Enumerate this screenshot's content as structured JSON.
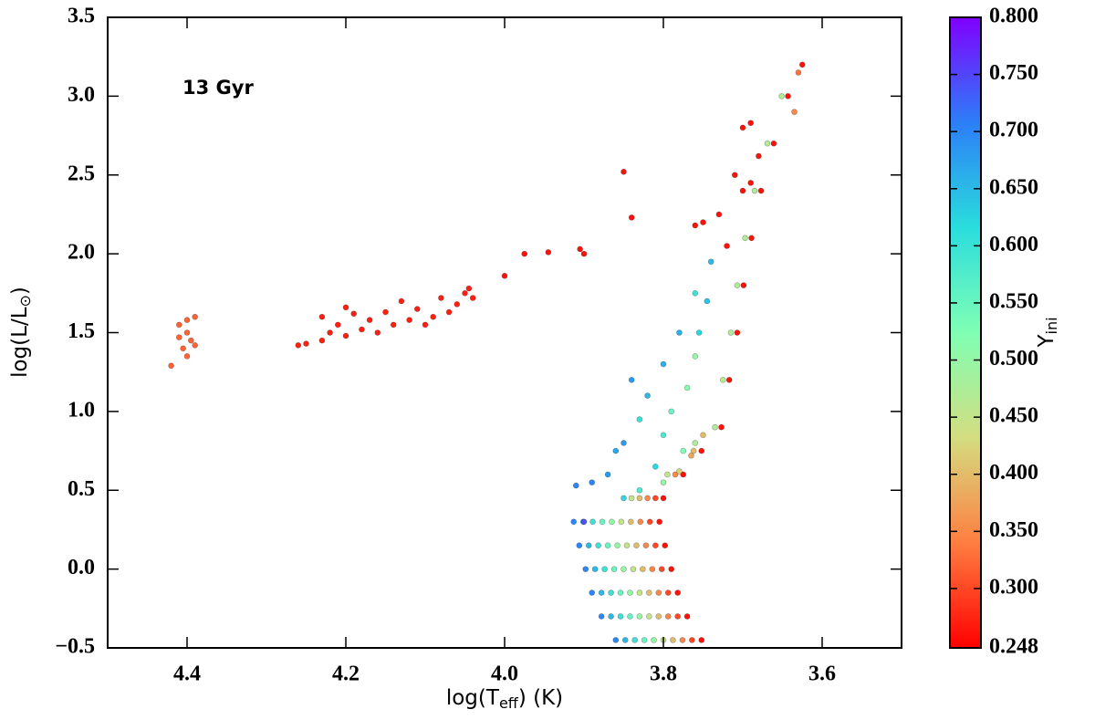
{
  "chart_data": {
    "type": "scatter",
    "annotation": "13 Gyr",
    "xlabel": {
      "pre": "log(T",
      "sub": "eff",
      "post": ") (K)"
    },
    "ylabel": {
      "pre": "log(L/L",
      "sub": "⊙",
      "post": ")"
    },
    "colorbar_label": {
      "main": "Y",
      "sub": "ini"
    },
    "xlim": [
      4.5,
      3.5
    ],
    "ylim": [
      -0.5,
      3.5
    ],
    "xticks": [
      4.4,
      4.2,
      {
        "value": 4.0,
        "label": "4.0"
      },
      3.8,
      3.6
    ],
    "yticks": [
      {
        "value": -0.5,
        "label": "−0.5"
      },
      {
        "value": 0,
        "label": "0.0"
      },
      0.5,
      {
        "value": 1,
        "label": "1.0"
      },
      1.5,
      {
        "value": 2,
        "label": "2.0"
      },
      2.5,
      {
        "value": 3,
        "label": "3.0"
      },
      3.5
    ],
    "clim": [
      0.248,
      0.8
    ],
    "cticks": [
      {
        "value": 0.248,
        "label": "0.248"
      },
      {
        "value": 0.3,
        "label": "0.300"
      },
      {
        "value": 0.35,
        "label": "0.350"
      },
      {
        "value": 0.4,
        "label": "0.400"
      },
      {
        "value": 0.45,
        "label": "0.450"
      },
      {
        "value": 0.5,
        "label": "0.500"
      },
      {
        "value": 0.55,
        "label": "0.550"
      },
      {
        "value": 0.6,
        "label": "0.600"
      },
      {
        "value": 0.65,
        "label": "0.650"
      },
      {
        "value": 0.7,
        "label": "0.700"
      },
      {
        "value": 0.75,
        "label": "0.750"
      },
      {
        "value": 0.8,
        "label": "0.800"
      }
    ],
    "colormap": [
      "#ff0000",
      "#ff7e41",
      "#d4dd80",
      "#80ffb4",
      "#2adddd",
      "#2c7ef7",
      "#8000ff"
    ],
    "series": [
      {
        "x": [
          4.4,
          4.41,
          4.39,
          4.4,
          4.395,
          4.405,
          4.4,
          4.42,
          4.39,
          4.41
        ],
        "values": [
          1.58,
          1.55,
          1.6,
          1.5,
          1.45,
          1.4,
          1.35,
          1.29,
          1.42,
          1.47
        ],
        "color_values": [
          0.32,
          0.32,
          0.32,
          0.32,
          0.32,
          0.32,
          0.32,
          0.32,
          0.32,
          0.32
        ]
      },
      {
        "x": [
          4.26,
          4.25,
          4.23,
          4.22,
          4.21,
          4.2,
          4.19,
          4.18,
          4.17,
          4.16,
          4.15,
          4.14,
          4.13,
          4.12,
          4.11,
          4.1,
          4.09,
          4.08,
          4.07,
          4.06,
          4.05,
          4.04,
          4.045,
          4.2,
          4.23
        ],
        "values": [
          1.42,
          1.43,
          1.45,
          1.5,
          1.55,
          1.48,
          1.62,
          1.52,
          1.58,
          1.5,
          1.63,
          1.55,
          1.7,
          1.58,
          1.65,
          1.55,
          1.6,
          1.72,
          1.63,
          1.68,
          1.75,
          1.72,
          1.78,
          1.66,
          1.6
        ],
        "color_values": [
          0.27,
          0.27,
          0.27,
          0.27,
          0.27,
          0.27,
          0.27,
          0.27,
          0.27,
          0.27,
          0.27,
          0.27,
          0.27,
          0.27,
          0.27,
          0.27,
          0.27,
          0.27,
          0.27,
          0.27,
          0.27,
          0.27,
          0.27,
          0.27,
          0.27
        ]
      },
      {
        "x": [
          3.85,
          3.84,
          4.0,
          3.975,
          3.945,
          3.905,
          3.9,
          3.76,
          3.75,
          3.73,
          3.72,
          3.7,
          3.69,
          3.71,
          3.68,
          3.7,
          3.69
        ],
        "values": [
          2.52,
          2.23,
          1.86,
          2.0,
          2.01,
          2.03,
          2.0,
          2.18,
          2.2,
          2.25,
          2.05,
          2.4,
          2.45,
          2.5,
          2.62,
          2.8,
          2.83
        ],
        "color_values": [
          0.26,
          0.26,
          0.26,
          0.26,
          0.26,
          0.26,
          0.26,
          0.26,
          0.26,
          0.26,
          0.26,
          0.26,
          0.26,
          0.26,
          0.26,
          0.26,
          0.26
        ]
      },
      {
        "x": [
          3.752,
          3.764,
          3.776,
          3.788,
          3.8,
          3.812,
          3.824,
          3.836,
          3.848,
          3.86
        ],
        "values": [
          -0.45,
          -0.45,
          -0.45,
          -0.45,
          -0.45,
          -0.45,
          -0.45,
          -0.45,
          -0.45,
          -0.45
        ],
        "color_values": [
          0.26,
          0.3,
          0.35,
          0.4,
          0.45,
          0.5,
          0.55,
          0.6,
          0.65,
          0.7
        ]
      },
      {
        "x": [
          3.77,
          3.782,
          3.794,
          3.806,
          3.818,
          3.83,
          3.842,
          3.854,
          3.866,
          3.878
        ],
        "values": [
          -0.3,
          -0.3,
          -0.3,
          -0.3,
          -0.3,
          -0.3,
          -0.3,
          -0.3,
          -0.3,
          -0.3
        ],
        "color_values": [
          0.26,
          0.3,
          0.35,
          0.4,
          0.45,
          0.5,
          0.55,
          0.6,
          0.65,
          0.7
        ]
      },
      {
        "x": [
          3.782,
          3.794,
          3.806,
          3.818,
          3.83,
          3.842,
          3.854,
          3.866,
          3.878,
          3.89
        ],
        "values": [
          -0.15,
          -0.15,
          -0.15,
          -0.15,
          -0.15,
          -0.15,
          -0.15,
          -0.15,
          -0.15,
          -0.15
        ],
        "color_values": [
          0.26,
          0.3,
          0.35,
          0.4,
          0.45,
          0.5,
          0.55,
          0.6,
          0.65,
          0.7
        ]
      },
      {
        "x": [
          3.79,
          3.802,
          3.814,
          3.826,
          3.838,
          3.85,
          3.862,
          3.874,
          3.886,
          3.898
        ],
        "values": [
          0,
          0,
          0,
          0,
          0,
          0,
          0,
          0,
          0,
          0
        ],
        "color_values": [
          0.26,
          0.3,
          0.35,
          0.4,
          0.45,
          0.5,
          0.55,
          0.6,
          0.65,
          0.7
        ]
      },
      {
        "x": [
          3.798,
          3.81,
          3.822,
          3.834,
          3.846,
          3.858,
          3.87,
          3.882,
          3.894,
          3.906
        ],
        "values": [
          0.15,
          0.15,
          0.15,
          0.15,
          0.15,
          0.15,
          0.15,
          0.15,
          0.15,
          0.15
        ],
        "color_values": [
          0.26,
          0.3,
          0.35,
          0.4,
          0.45,
          0.5,
          0.55,
          0.6,
          0.65,
          0.7
        ]
      },
      {
        "x": [
          3.805,
          3.817,
          3.829,
          3.841,
          3.853,
          3.865,
          3.877,
          3.889,
          3.901,
          3.913
        ],
        "values": [
          0.3,
          0.3,
          0.3,
          0.3,
          0.3,
          0.3,
          0.3,
          0.3,
          0.3,
          0.3
        ],
        "color_values": [
          0.26,
          0.3,
          0.35,
          0.4,
          0.45,
          0.5,
          0.55,
          0.6,
          0.65,
          0.7
        ]
      },
      {
        "x": [
          3.8,
          3.81,
          3.82,
          3.83,
          3.84,
          3.775,
          3.785,
          3.795,
          3.752,
          3.762
        ],
        "values": [
          0.45,
          0.45,
          0.45,
          0.45,
          0.45,
          0.6,
          0.6,
          0.6,
          0.75,
          0.75
        ],
        "color_values": [
          0.26,
          0.3,
          0.35,
          0.4,
          0.45,
          0.26,
          0.35,
          0.45,
          0.26,
          0.4
        ]
      },
      {
        "x": [
          3.91,
          3.89,
          3.85,
          3.84,
          3.82,
          3.8,
          3.78,
          3.76,
          3.755,
          3.74,
          3.745,
          3.87,
          3.86,
          3.83,
          3.8,
          3.81,
          3.79,
          3.77,
          3.76,
          3.9,
          3.85,
          3.83,
          3.8,
          3.78,
          3.765,
          3.75,
          3.76,
          3.775
        ],
        "values": [
          0.53,
          0.55,
          0.8,
          1.2,
          1.1,
          1.3,
          1.5,
          1.75,
          1.5,
          1.95,
          1.7,
          0.6,
          0.75,
          0.95,
          0.85,
          0.65,
          1.0,
          1.15,
          1.35,
          0.3,
          0.45,
          0.5,
          0.55,
          0.62,
          0.72,
          0.85,
          0.8,
          0.75
        ],
        "color_values": [
          0.7,
          0.7,
          0.68,
          0.68,
          0.65,
          0.66,
          0.66,
          0.6,
          0.62,
          0.65,
          0.64,
          0.68,
          0.67,
          0.6,
          0.58,
          0.62,
          0.55,
          0.52,
          0.5,
          0.74,
          0.62,
          0.58,
          0.5,
          0.42,
          0.38,
          0.4,
          0.48,
          0.52
        ]
      },
      {
        "x": [
          3.727,
          3.717,
          3.707,
          3.699,
          3.689,
          3.677,
          3.661,
          3.643,
          3.625,
          3.735,
          3.725,
          3.715,
          3.707,
          3.697,
          3.685,
          3.669,
          3.651,
          3.63,
          3.635
        ],
        "values": [
          0.9,
          1.2,
          1.5,
          1.8,
          2.1,
          2.4,
          2.7,
          3.0,
          3.2,
          0.9,
          1.2,
          1.5,
          1.8,
          2.1,
          2.4,
          2.7,
          3.0,
          3.15,
          2.9
        ],
        "color_values": [
          0.26,
          0.26,
          0.26,
          0.26,
          0.26,
          0.26,
          0.26,
          0.26,
          0.26,
          0.47,
          0.47,
          0.47,
          0.47,
          0.47,
          0.47,
          0.47,
          0.47,
          0.33,
          0.35
        ]
      }
    ]
  }
}
